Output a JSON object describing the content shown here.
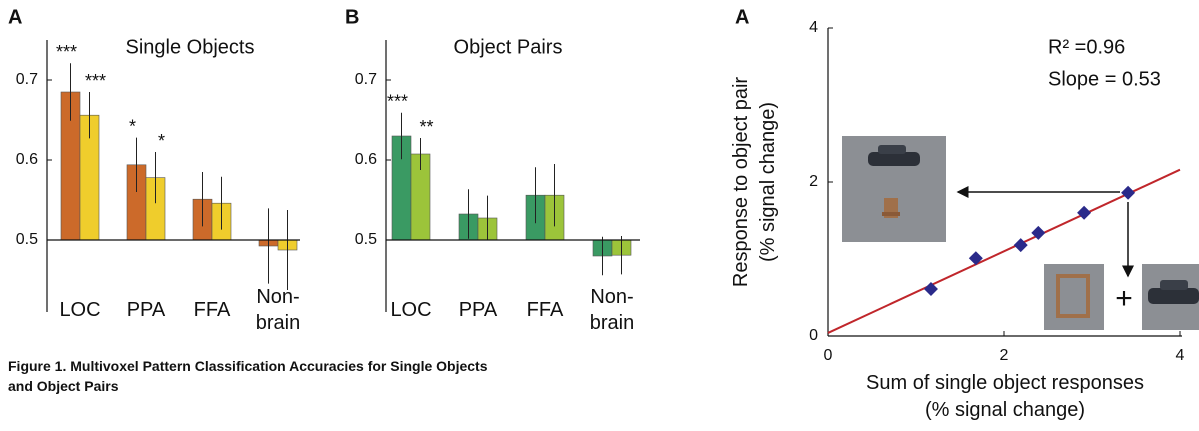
{
  "chart_data": [
    {
      "type": "bar",
      "panel": "A",
      "title": "Single Objects",
      "categories": [
        "LOC",
        "PPA",
        "FFA",
        "Non-\nbrain"
      ],
      "baseline": 0.5,
      "ylim": [
        0.41,
        0.75
      ],
      "yticks": [
        0.5,
        0.6,
        0.7
      ],
      "series": [
        {
          "color": "#cc6a2a",
          "values": [
            0.685,
            0.594,
            0.551,
            0.4925
          ],
          "errors": [
            0.036,
            0.034,
            0.034,
            0.047
          ],
          "significance": [
            "***",
            "*",
            null,
            null
          ]
        },
        {
          "color": "#efcd2c",
          "values": [
            0.656,
            0.578,
            0.546,
            0.4875
          ],
          "errors": [
            0.029,
            0.032,
            0.033,
            0.05
          ],
          "significance": [
            "***",
            "*",
            null,
            null
          ]
        }
      ]
    },
    {
      "type": "bar",
      "panel": "B",
      "title": "Object Pairs",
      "categories": [
        "LOC",
        "PPA",
        "FFA",
        "Non-\nbrain"
      ],
      "baseline": 0.5,
      "ylim": [
        0.41,
        0.75
      ],
      "yticks": [
        0.5,
        0.6,
        0.7
      ],
      "series": [
        {
          "color": "#3a9a63",
          "values": [
            0.63,
            0.5325,
            0.556,
            0.48
          ],
          "errors": [
            0.029,
            0.031,
            0.035,
            0.024
          ],
          "significance": [
            "***",
            null,
            null,
            null
          ]
        },
        {
          "color": "#9cc43a",
          "values": [
            0.6075,
            0.5275,
            0.556,
            0.481
          ],
          "errors": [
            0.02,
            0.028,
            0.039,
            0.024
          ],
          "significance": [
            "**",
            null,
            null,
            null
          ]
        }
      ]
    },
    {
      "type": "scatter",
      "panel": "A",
      "x_label": "Sum of single object responses\n(% signal change)",
      "y_label": "Response to object pair\n(% signal change)",
      "xlim": [
        0,
        4
      ],
      "ylim": [
        0,
        4
      ],
      "xticks": [
        0,
        2,
        4
      ],
      "yticks": [
        0,
        2,
        4
      ],
      "series": [
        {
          "color": "#2a2a8a",
          "x": [
            1.17,
            1.68,
            2.19,
            2.39,
            2.91,
            3.41
          ],
          "values": [
            0.61,
            1.01,
            1.18,
            1.34,
            1.6,
            1.86
          ]
        }
      ],
      "fit": {
        "color": "#c0262b",
        "x": [
          0,
          4
        ],
        "y": [
          0.04,
          2.16
        ]
      },
      "annotations": [
        "R² =0.96",
        "Slope = 0.53"
      ],
      "plus_sign": "+"
    }
  ],
  "caption": "Figure 1. Multivoxel Pattern Classification Accuracies for Single Objects\nand Object Pairs"
}
